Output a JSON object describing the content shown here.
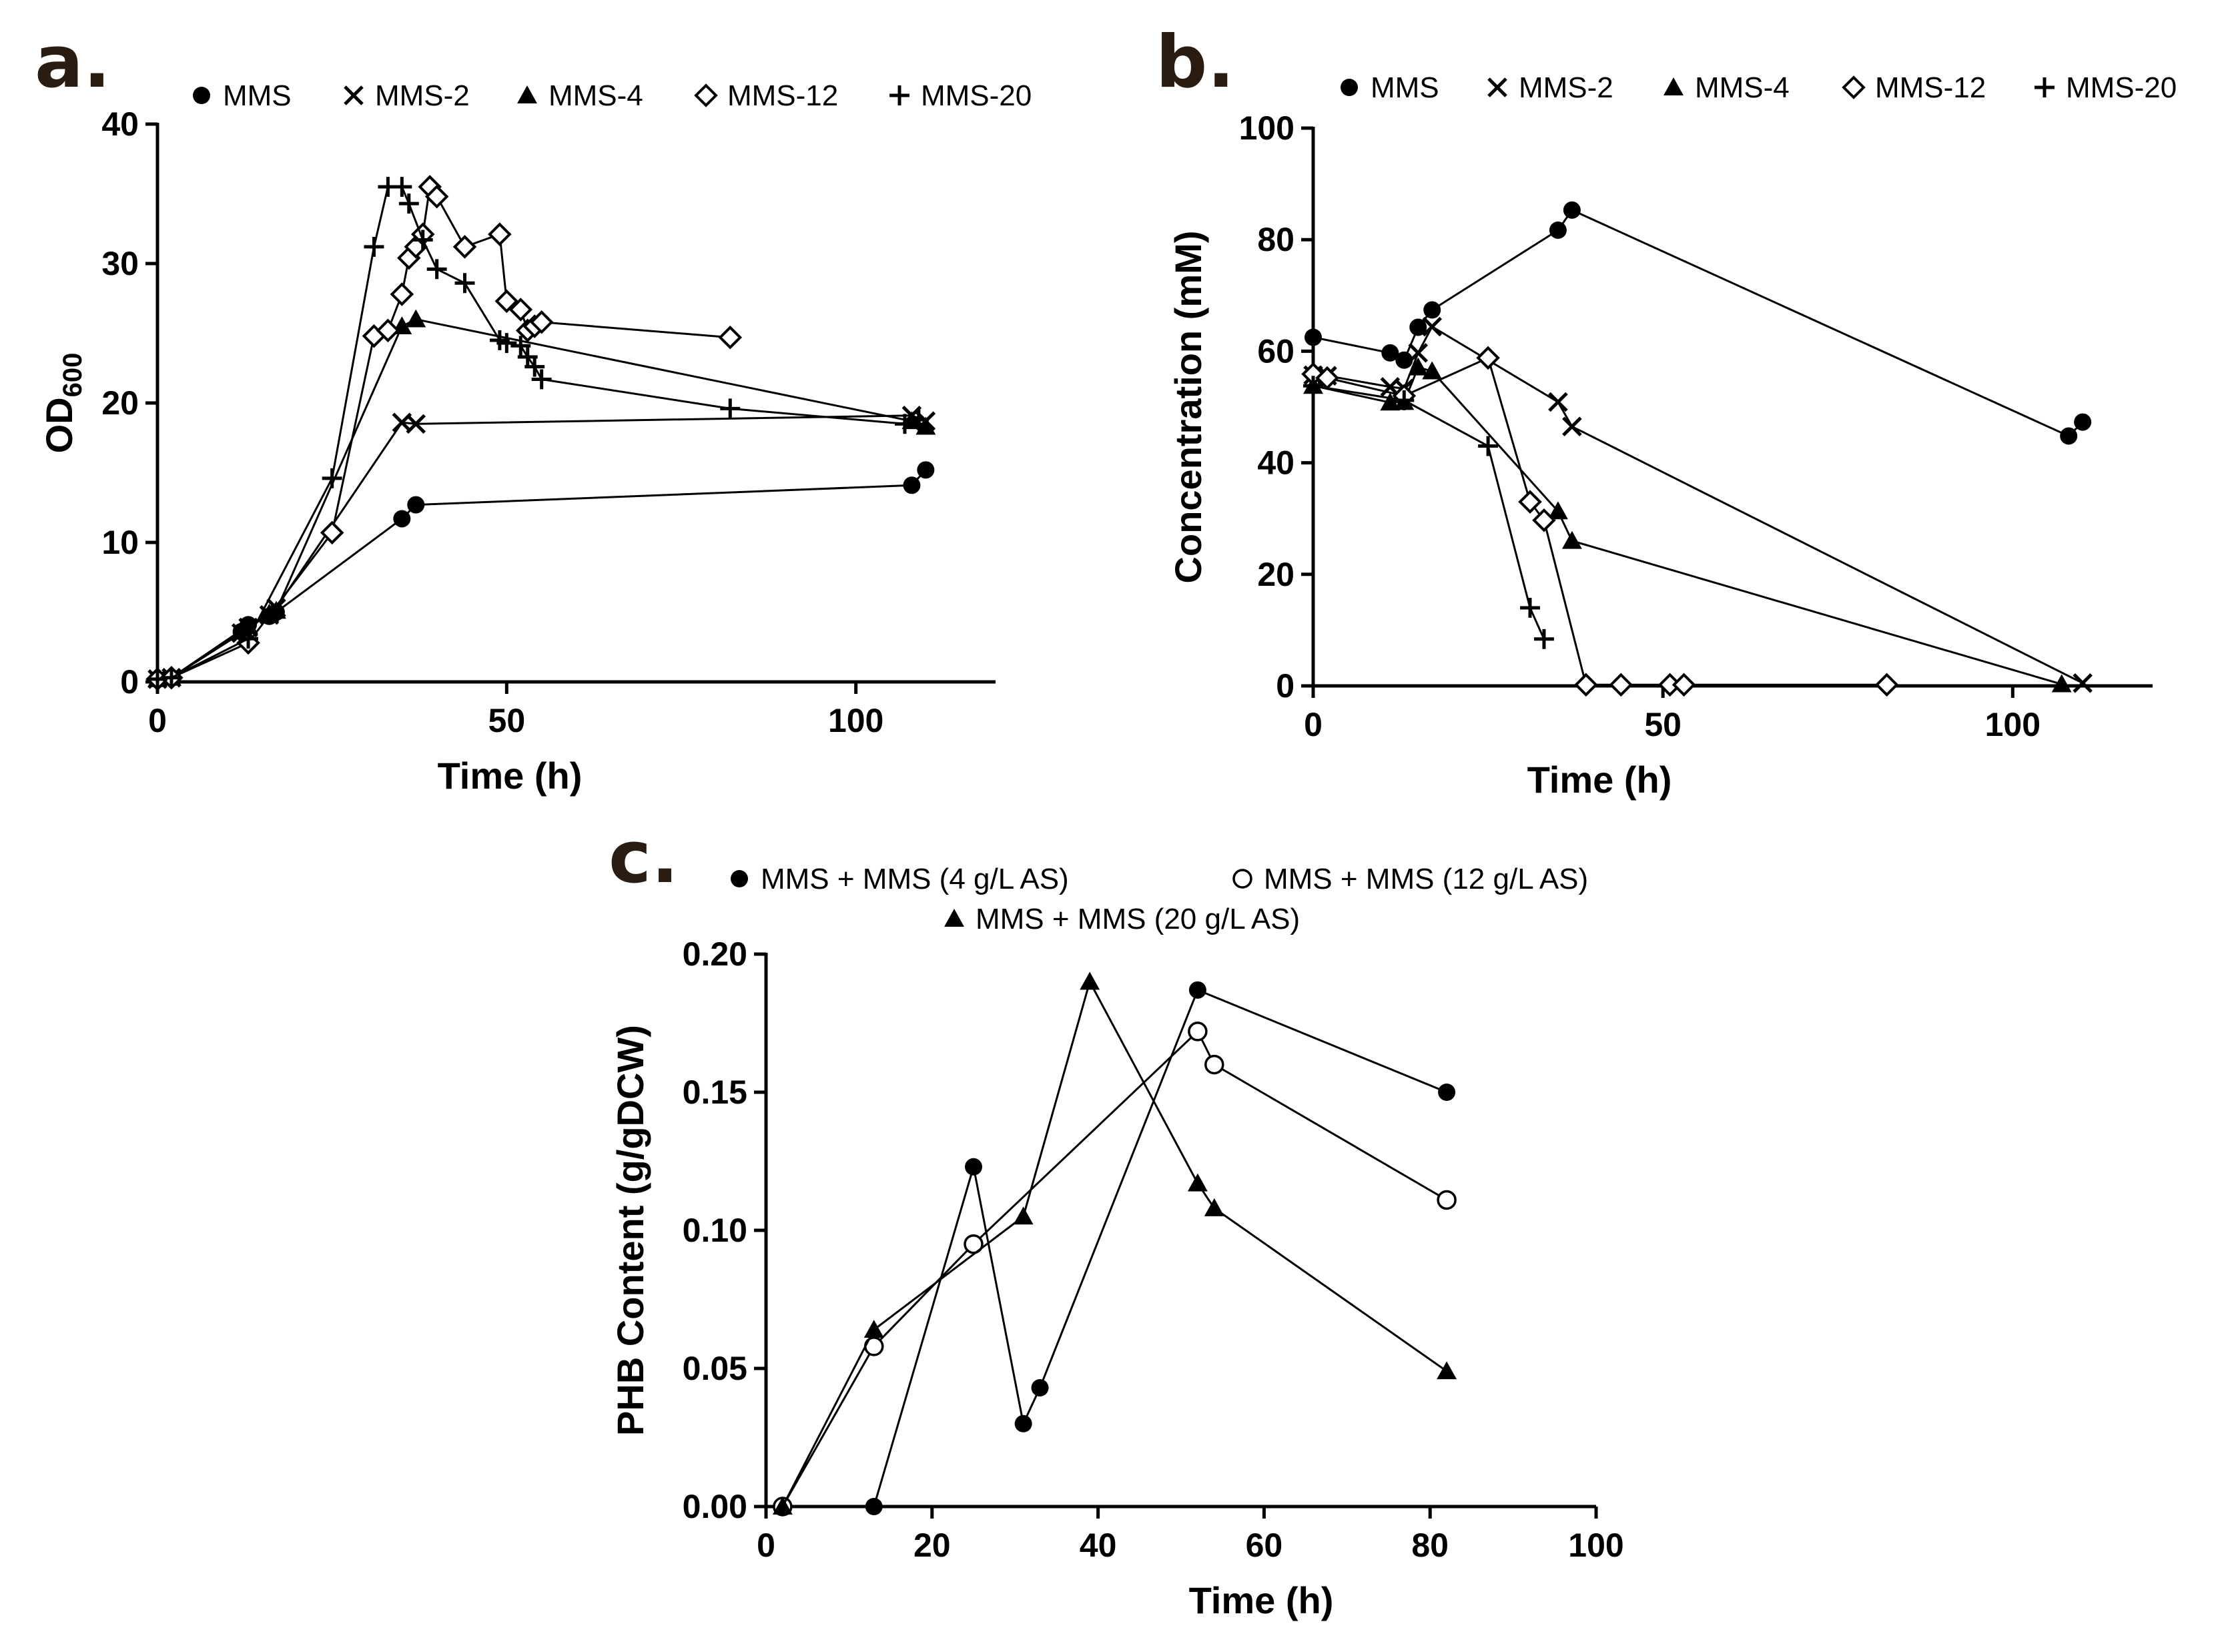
{
  "chart_data": [
    {
      "panel": "a.",
      "type": "line",
      "xlabel": "Time (h)",
      "ylabel": "OD",
      "ylabel_subscript": "600",
      "xlim": [
        0,
        120
      ],
      "ylim": [
        0,
        40
      ],
      "xticks": [
        0,
        50,
        100
      ],
      "yticks": [
        0,
        10,
        20,
        30,
        40
      ],
      "legend_position": "top",
      "series": [
        {
          "name": "MMS",
          "marker": "circle",
          "x": [
            0,
            2,
            12,
            13,
            16,
            17,
            35,
            37,
            108,
            110
          ],
          "y": [
            0.2,
            0.3,
            3.6,
            4.1,
            4.7,
            5.0,
            11.7,
            12.7,
            14.1,
            15.2
          ]
        },
        {
          "name": "MMS-2",
          "marker": "x",
          "x": [
            0,
            2,
            12,
            13,
            16,
            17,
            35,
            37,
            108,
            110
          ],
          "y": [
            0.2,
            0.3,
            3.5,
            3.9,
            4.8,
            5.3,
            18.6,
            18.5,
            19.1,
            18.7
          ]
        },
        {
          "name": "MMS-4",
          "marker": "triangle",
          "x": [
            0,
            2,
            12,
            13,
            16,
            17,
            35,
            37,
            108,
            110
          ],
          "y": [
            0.2,
            0.3,
            3.7,
            4.0,
            4.9,
            5.1,
            25.5,
            26.0,
            18.7,
            18.3
          ]
        },
        {
          "name": "MMS-12",
          "marker": "diamond",
          "x": [
            0,
            2,
            13,
            25,
            31,
            33,
            35,
            36,
            37,
            38,
            39,
            40,
            44,
            49,
            50,
            52,
            53,
            54,
            55,
            82
          ],
          "y": [
            0.2,
            0.3,
            2.8,
            10.7,
            24.8,
            25.2,
            27.8,
            30.4,
            31.2,
            32.1,
            35.5,
            34.8,
            31.2,
            32.1,
            27.3,
            26.7,
            25.2,
            25.5,
            25.8,
            24.7
          ]
        },
        {
          "name": "MMS-20",
          "marker": "plus",
          "x": [
            0,
            2,
            13,
            25,
            31,
            33,
            35,
            36,
            38,
            40,
            44,
            49,
            50,
            52,
            53,
            54,
            55,
            82,
            107,
            109
          ],
          "y": [
            0.2,
            0.3,
            3.1,
            14.6,
            31.2,
            35.5,
            35.5,
            34.3,
            31.7,
            29.6,
            28.6,
            24.5,
            24.3,
            24.1,
            23.3,
            22.6,
            21.7,
            19.6,
            18.5,
            18.8
          ]
        }
      ]
    },
    {
      "panel": "b.",
      "type": "line",
      "xlabel": "Time (h)",
      "ylabel": "Concentration (mM)",
      "xlim": [
        0,
        120
      ],
      "ylim": [
        0,
        100
      ],
      "xticks": [
        0,
        50,
        100
      ],
      "yticks": [
        0,
        20,
        40,
        60,
        80,
        100
      ],
      "legend_position": "top",
      "series": [
        {
          "name": "MMS",
          "marker": "circle",
          "x": [
            0,
            11,
            13,
            15,
            17,
            35,
            37,
            108,
            110
          ],
          "y": [
            62.5,
            59.7,
            58.4,
            64.3,
            67.4,
            81.7,
            85.3,
            44.8,
            47.3
          ]
        },
        {
          "name": "MMS-2",
          "marker": "x",
          "x": [
            0,
            2,
            11,
            13,
            15,
            17,
            35,
            37,
            110
          ],
          "y": [
            55.7,
            55.6,
            53.6,
            53.3,
            59.7,
            64.4,
            50.9,
            46.5,
            0.5
          ]
        },
        {
          "name": "MMS-4",
          "marker": "triangle",
          "x": [
            0,
            11,
            13,
            15,
            17,
            35,
            37,
            107
          ],
          "y": [
            53.8,
            50.8,
            50.9,
            57.1,
            56.4,
            31.3,
            26.0,
            0.3
          ]
        },
        {
          "name": "MMS-12",
          "marker": "diamond",
          "x": [
            0,
            2,
            13,
            25,
            31,
            33,
            39,
            44,
            51,
            53,
            82
          ],
          "y": [
            55.9,
            55.2,
            52.0,
            58.8,
            33.0,
            29.7,
            0.2,
            0.2,
            0.2,
            0.2,
            0.2
          ]
        },
        {
          "name": "MMS-20",
          "marker": "plus",
          "x": [
            0,
            13,
            25,
            31,
            33
          ],
          "y": [
            53.8,
            51.2,
            43.0,
            14.0,
            8.4
          ]
        }
      ]
    },
    {
      "panel": "c.",
      "type": "line",
      "xlabel": "Time (h)",
      "ylabel": "PHB Content (g/gDCW)",
      "xlim": [
        0,
        100
      ],
      "ylim": [
        0,
        0.2
      ],
      "xticks": [
        0,
        20,
        40,
        60,
        80,
        100
      ],
      "yticks": [
        "0.00",
        "0.05",
        "0.10",
        "0.15",
        "0.20"
      ],
      "legend_position": "top",
      "series": [
        {
          "name": "MMS + MMS (4 g/L AS)",
          "marker": "circle",
          "x": [
            2,
            13,
            25,
            31,
            33,
            52,
            82
          ],
          "y": [
            0.0,
            0.0,
            0.123,
            0.03,
            0.043,
            0.187,
            0.15
          ]
        },
        {
          "name": "MMS + MMS (12 g/L AS)",
          "marker": "open-circle",
          "x": [
            2,
            13,
            25,
            52,
            54,
            82
          ],
          "y": [
            0.0,
            0.058,
            0.095,
            0.172,
            0.16,
            0.111
          ]
        },
        {
          "name": "MMS + MMS (20 g/L AS)",
          "marker": "triangle",
          "x": [
            2,
            13,
            31,
            39,
            52,
            54,
            82
          ],
          "y": [
            0.0,
            0.064,
            0.105,
            0.19,
            0.117,
            0.108,
            0.049
          ]
        }
      ]
    }
  ]
}
